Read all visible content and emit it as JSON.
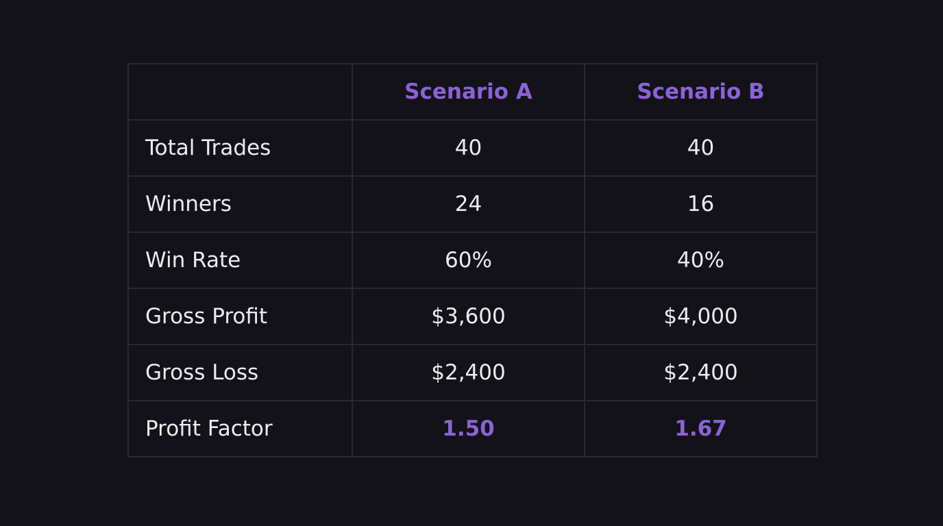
{
  "table": {
    "columns": [
      "Scenario A",
      "Scenario B"
    ],
    "rows": [
      [
        "Total Trades",
        "40",
        "40"
      ],
      [
        "Winners",
        "24",
        "16"
      ],
      [
        "Win Rate",
        "60%",
        "40%"
      ],
      [
        "Gross Profit",
        "$3,600",
        "$4,000"
      ],
      [
        "Gross Loss",
        "$2,400",
        "$2,400"
      ],
      [
        "Profit Factor",
        "1.50",
        "1.67"
      ]
    ]
  }
}
